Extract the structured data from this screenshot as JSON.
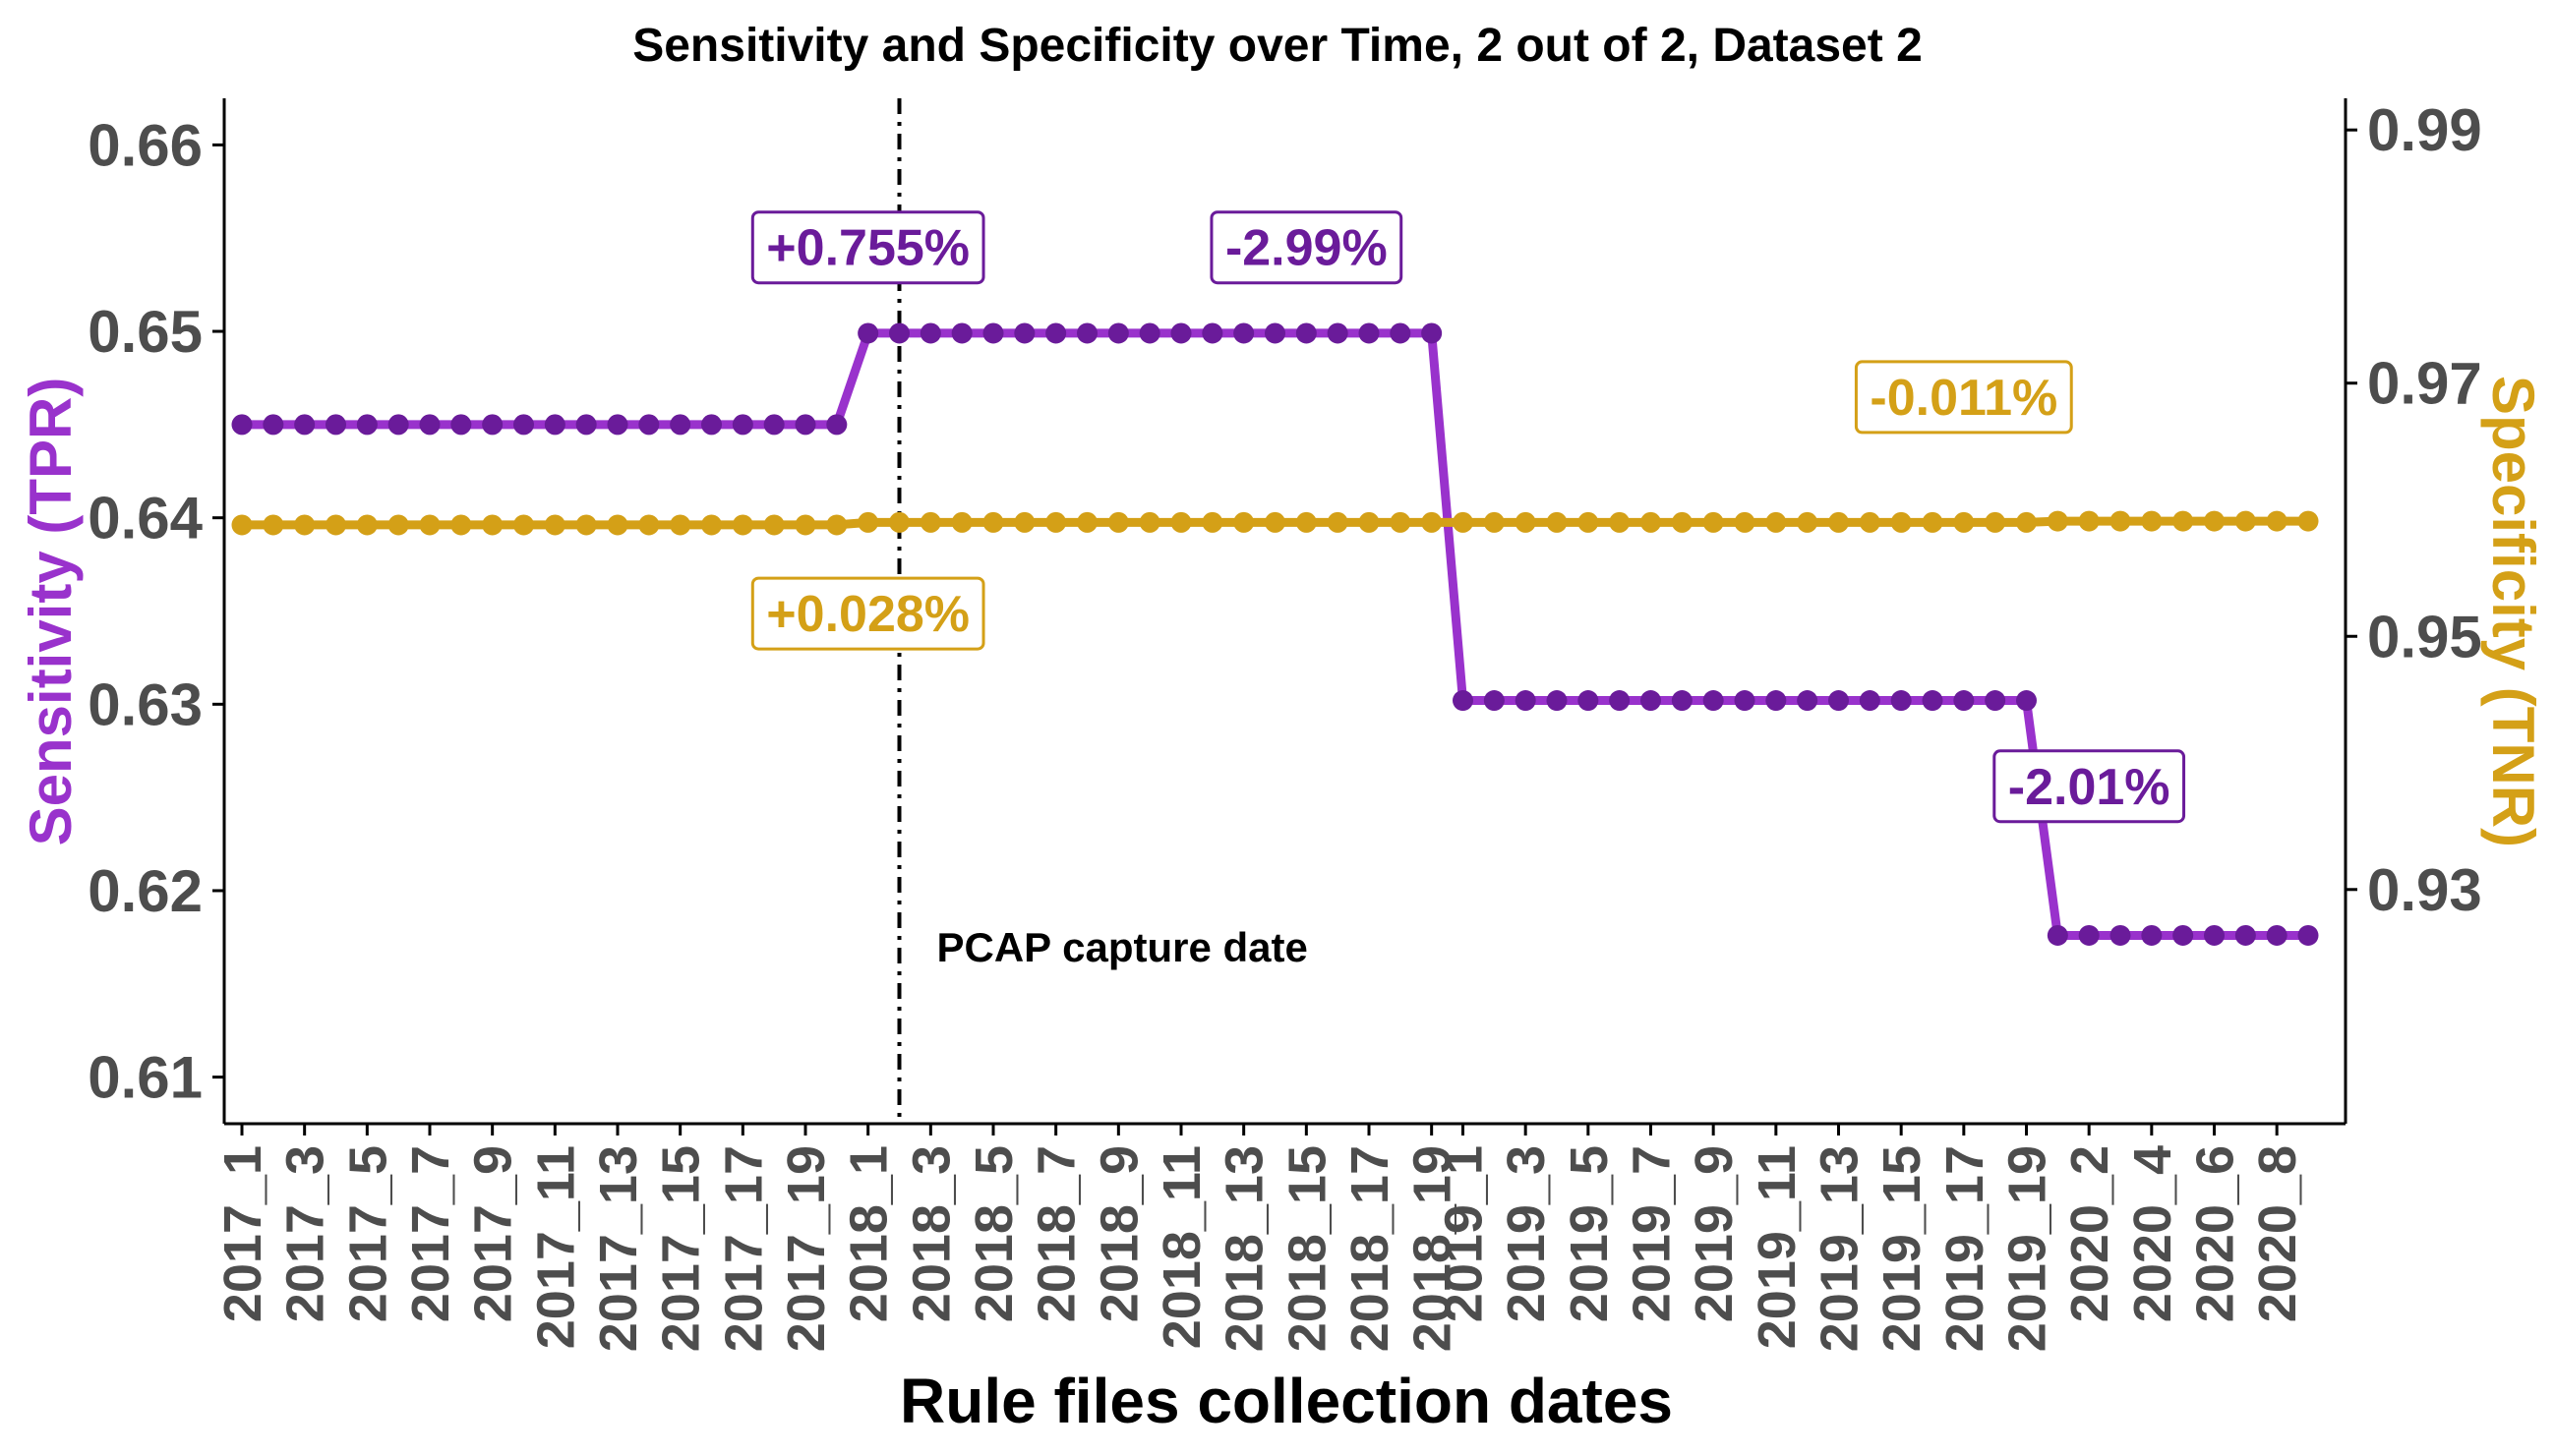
{
  "chart_data": {
    "type": "line",
    "title": "Sensitivity and Specificity over Time, 2 out of 2, Dataset 2",
    "xlabel": "Rule files collection dates",
    "ylabel_left": "Sensitivity (TPR)",
    "ylabel_right": "Specificity (TNR)",
    "ylim_left": [
      0.6075,
      0.6625
    ],
    "ylim_right": [
      0.9115,
      0.9925
    ],
    "yticks_left": [
      "0.61",
      "0.62",
      "0.63",
      "0.64",
      "0.65",
      "0.66"
    ],
    "yticks_left_values": [
      0.61,
      0.62,
      0.63,
      0.64,
      0.65,
      0.66
    ],
    "yticks_right": [
      "0.93",
      "0.95",
      "0.97",
      "0.99"
    ],
    "yticks_right_values": [
      0.93,
      0.95,
      0.97,
      0.99
    ],
    "x": [
      "2017_1",
      "2017_2",
      "2017_3",
      "2017_4",
      "2017_5",
      "2017_6",
      "2017_7",
      "2017_8",
      "2017_9",
      "2017_10",
      "2017_11",
      "2017_12",
      "2017_13",
      "2017_14",
      "2017_15",
      "2017_16",
      "2017_17",
      "2017_18",
      "2017_19",
      "2017_20",
      "2018_1",
      "2018_2",
      "2018_3",
      "2018_4",
      "2018_5",
      "2018_6",
      "2018_7",
      "2018_8",
      "2018_9",
      "2018_10",
      "2018_11",
      "2018_12",
      "2018_13",
      "2018_14",
      "2018_15",
      "2018_16",
      "2018_17",
      "2018_18",
      "2018_19",
      "2019_1",
      "2019_2",
      "2019_3",
      "2019_4",
      "2019_5",
      "2019_6",
      "2019_7",
      "2019_8",
      "2019_9",
      "2019_10",
      "2019_11",
      "2019_12",
      "2019_13",
      "2019_14",
      "2019_15",
      "2019_16",
      "2019_17",
      "2019_18",
      "2019_19",
      "2020_1",
      "2020_2",
      "2020_3",
      "2020_4",
      "2020_5",
      "2020_6",
      "2020_7",
      "2020_8",
      "2020_9"
    ],
    "x_tick_labels": [
      "2017_1",
      "2017_3",
      "2017_5",
      "2017_7",
      "2017_9",
      "2017_11",
      "2017_13",
      "2017_15",
      "2017_17",
      "2017_19",
      "2018_1",
      "2018_3",
      "2018_5",
      "2018_7",
      "2018_9",
      "2018_11",
      "2018_13",
      "2018_15",
      "2018_17",
      "2018_19",
      "2019_1",
      "2019_3",
      "2019_5",
      "2019_7",
      "2019_9",
      "2019_11",
      "2019_13",
      "2019_15",
      "2019_17",
      "2019_19",
      "2020_2",
      "2020_4",
      "2020_6",
      "2020_8"
    ],
    "series": [
      {
        "name": "Sensitivity (TPR)",
        "axis": "left",
        "line_color": "#9932cc",
        "point_color": "#6a1b9a",
        "segments": [
          {
            "from": "2017_1",
            "to": "2017_20",
            "value": 0.645
          },
          {
            "from": "2018_1",
            "to": "2018_19",
            "value": 0.6499
          },
          {
            "from": "2019_1",
            "to": "2019_19",
            "value": 0.6302
          },
          {
            "from": "2020_1",
            "to": "2020_9",
            "value": 0.6176
          }
        ]
      },
      {
        "name": "Specificity (TNR)",
        "axis": "right",
        "line_color": "#d4a017",
        "point_color": "#d4a017",
        "segments": [
          {
            "from": "2017_1",
            "to": "2017_20",
            "value": 0.9588
          },
          {
            "from": "2018_1",
            "to": "2018_19",
            "value": 0.959
          },
          {
            "from": "2019_1",
            "to": "2019_19",
            "value": 0.959
          },
          {
            "from": "2020_1",
            "to": "2020_9",
            "value": 0.9591
          }
        ]
      }
    ],
    "vline": {
      "at": "2018_2",
      "label": "PCAP capture date"
    },
    "annotations": [
      {
        "text": "+0.755%",
        "color": "#6a1b9a",
        "x": "2018_1",
        "axis": "left",
        "y": 0.6545
      },
      {
        "text": "-2.99%",
        "color": "#6a1b9a",
        "x": "2018_15",
        "axis": "left",
        "y": 0.6545
      },
      {
        "text": "-0.011%",
        "color": "#d4a017",
        "x": "2019_17",
        "axis": "right",
        "y": 0.9689
      },
      {
        "text": "+0.028%",
        "color": "#d4a017",
        "x": "2018_1",
        "axis": "right",
        "y": 0.9518
      },
      {
        "text": "-2.01%",
        "color": "#6a1b9a",
        "x": "2020_2",
        "axis": "left",
        "y": 0.6256
      }
    ],
    "grid": false,
    "legend": "none"
  }
}
